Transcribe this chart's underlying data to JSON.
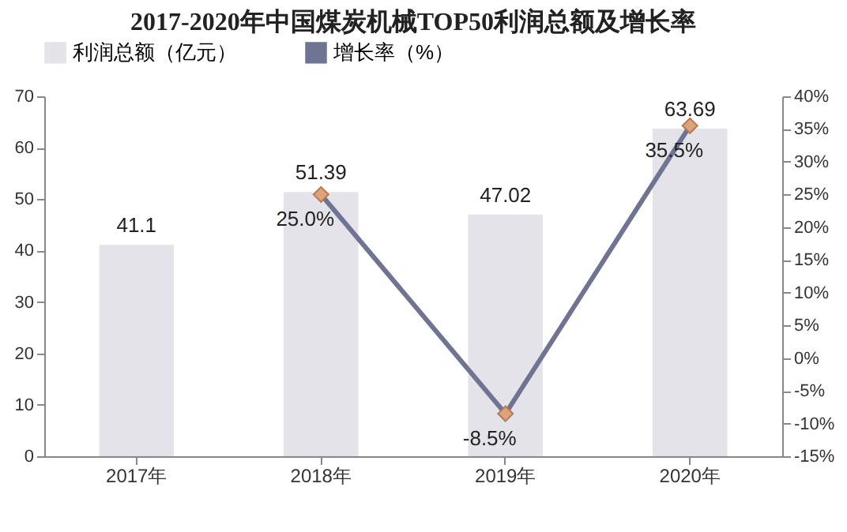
{
  "chart_data": {
    "type": "bar",
    "title": "2017-2020年中国煤炭机械TOP50利润总额及增长率",
    "categories": [
      "2017年",
      "2018年",
      "2019年",
      "2020年"
    ],
    "series": [
      {
        "name": "利润总额（亿元）",
        "color": "#e3e3e9",
        "values": [
          41.1,
          51.39,
          47.02,
          63.69
        ],
        "value_labels": [
          "41.1",
          "51.39",
          "47.02",
          "63.69"
        ]
      },
      {
        "name": "增长率（%）",
        "type": "line",
        "axis": "y2",
        "color": "#6e7491",
        "marker": "diamond",
        "values": [
          null,
          25.0,
          -8.5,
          35.5
        ],
        "value_labels": [
          null,
          "25.0%",
          "-8.5%",
          "35.5%"
        ]
      }
    ],
    "ylim": [
      0,
      70
    ],
    "yticks": [
      0,
      10,
      20,
      30,
      40,
      50,
      60,
      70
    ],
    "y2lim": [
      -15,
      40
    ],
    "y2ticks": [
      {
        "value": -15,
        "label": "-15%"
      },
      {
        "value": -10,
        "label": "-10%"
      },
      {
        "value": -5,
        "label": "-5%"
      },
      {
        "value": 0,
        "label": "0%"
      },
      {
        "value": 5,
        "label": "5%"
      },
      {
        "value": 10,
        "label": "10%"
      },
      {
        "value": 15,
        "label": "15%"
      },
      {
        "value": 20,
        "label": "20%"
      },
      {
        "value": 25,
        "label": "25%"
      },
      {
        "value": 30,
        "label": "30%"
      },
      {
        "value": 35,
        "label": "35%"
      },
      {
        "value": 40,
        "label": "40%"
      }
    ],
    "legend": "top",
    "grid": false
  }
}
